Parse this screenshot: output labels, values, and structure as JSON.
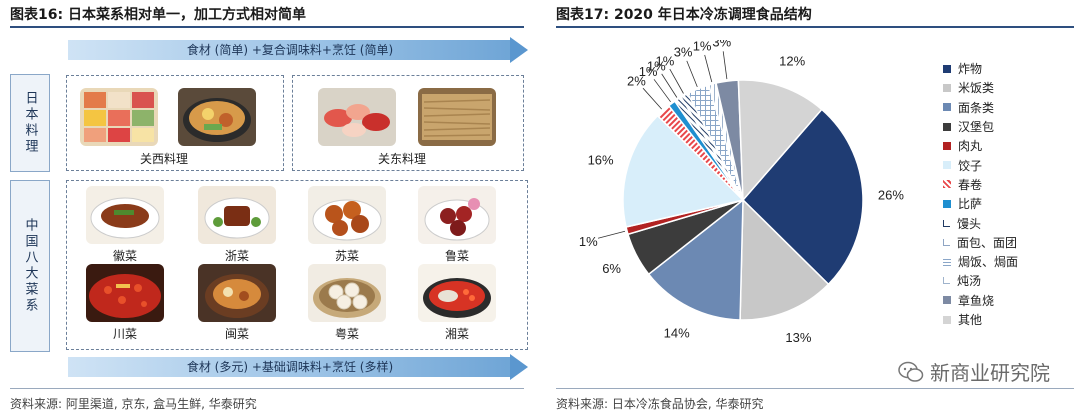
{
  "left": {
    "title": "图表16:  日本菜系相对单一，加工方式相对简单",
    "top_arrow": "食材 (简单) +复合调味料+烹饪 (简单)",
    "bottom_arrow": "食材 (多元) +基础调味料+烹饪 (多样)",
    "japan_label": "日本料理",
    "china_label": "中国八大菜系",
    "kansai": "关西料理",
    "kanto": "关东料理",
    "dishes": [
      "徽菜",
      "浙菜",
      "苏菜",
      "鲁菜",
      "川菜",
      "闽菜",
      "粤菜",
      "湘菜"
    ],
    "source": "资料来源: 阿里渠道, 京东, 盒马生鲜, 华泰研究"
  },
  "right": {
    "title": "图表17:  2020 年日本冷冻调理食品结构",
    "source": "资料来源: 日本冷冻食品协会, 华泰研究",
    "watermark": "新商业研究院"
  },
  "chart_data": {
    "type": "pie",
    "title": "2020 年日本冷冻调理食品结构",
    "slices": [
      {
        "name": "炸物",
        "value": 26,
        "label": "26%",
        "color": "#1f3c73",
        "pattern": "solid"
      },
      {
        "name": "米饭类",
        "value": 13,
        "label": "13%",
        "color": "#c8c8c8",
        "pattern": "solid"
      },
      {
        "name": "面条类",
        "value": 14,
        "label": "14%",
        "color": "#6c89b3",
        "pattern": "solid"
      },
      {
        "name": "汉堡包",
        "value": 6,
        "label": "6%",
        "color": "#3c3c3c",
        "pattern": "solid"
      },
      {
        "name": "肉丸",
        "value": 1,
        "label": "1%",
        "color": "#b22222",
        "pattern": "solid"
      },
      {
        "name": "饺子",
        "value": 16,
        "label": "16%",
        "color": "#d8eefa",
        "pattern": "solid"
      },
      {
        "name": "春卷",
        "value": 2,
        "label": "2%",
        "color": "#e8474a",
        "pattern": "stripes"
      },
      {
        "name": "比萨",
        "value": 1,
        "label": "1%",
        "color": "#1f8fd0",
        "pattern": "solid"
      },
      {
        "name": "馒头",
        "value": 1,
        "label": "1%",
        "color": "#203a63",
        "pattern": "diag"
      },
      {
        "name": "面包、面团",
        "value": 1,
        "label": "1%",
        "color": "#8fa5c4",
        "pattern": "diag"
      },
      {
        "name": "焗饭、焗面",
        "value": 3,
        "label": "3%",
        "color": "#8aa6c8",
        "pattern": "grid"
      },
      {
        "name": "炖汤",
        "value": 1,
        "label": "1%",
        "color": "#9fb3cc",
        "pattern": "vert"
      },
      {
        "name": "章鱼烧",
        "value": 3,
        "label": "3%",
        "color": "#7d8aa3",
        "pattern": "solid"
      },
      {
        "name": "其他",
        "value": 12,
        "label": "12%",
        "color": "#d4d4d4",
        "pattern": "solid"
      }
    ],
    "legend_position": "right"
  }
}
